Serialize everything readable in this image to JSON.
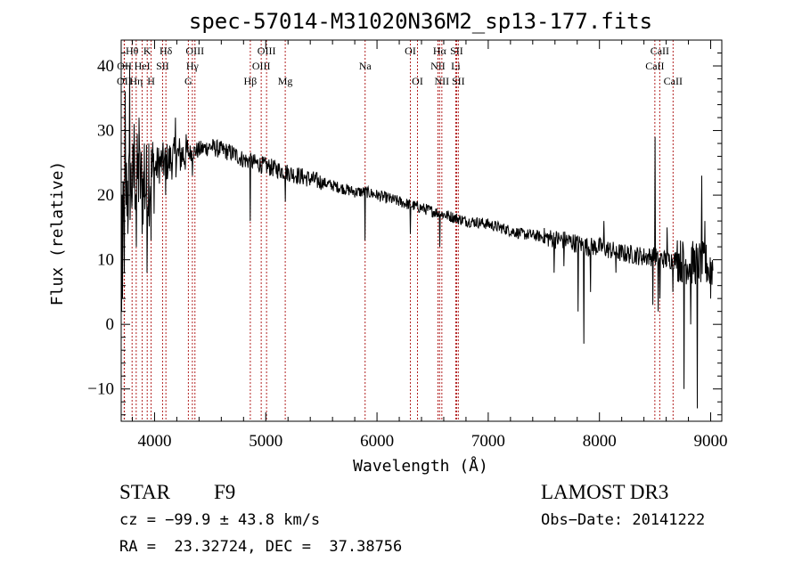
{
  "chart_data": {
    "type": "line",
    "title": "spec-57014-M31020N36M2_sp13-177.fits",
    "xlabel": "Wavelength (Å)",
    "ylabel": "Flux (relative)",
    "xlim": [
      3700,
      9100
    ],
    "ylim": [
      -15,
      44
    ],
    "xticks": [
      4000,
      5000,
      6000,
      7000,
      8000,
      9000
    ],
    "yticks": [
      -10,
      0,
      10,
      20,
      30,
      40
    ],
    "line_color": "#000000",
    "marker_color": "#b22222",
    "lines": [
      {
        "label": "OII",
        "wave": 3727,
        "row": 3
      },
      {
        "label": "OII",
        "wave": 3729,
        "row": 2
      },
      {
        "label": "Hθ",
        "wave": 3798,
        "row": 1
      },
      {
        "label": "Hη",
        "wave": 3835,
        "row": 3
      },
      {
        "label": "HeI",
        "wave": 3889,
        "row": 2
      },
      {
        "label": "K",
        "wave": 3934,
        "row": 1
      },
      {
        "label": "H",
        "wave": 3969,
        "row": 3
      },
      {
        "label": "SII",
        "wave": 4072,
        "row": 2
      },
      {
        "label": "Hδ",
        "wave": 4102,
        "row": 1
      },
      {
        "label": "G",
        "wave": 4304,
        "row": 3
      },
      {
        "label": "Hγ",
        "wave": 4340,
        "row": 2
      },
      {
        "label": "OIII",
        "wave": 4363,
        "row": 1
      },
      {
        "label": "Hβ",
        "wave": 4861,
        "row": 3
      },
      {
        "label": "OIII",
        "wave": 4959,
        "row": 2
      },
      {
        "label": "OIII",
        "wave": 5007,
        "row": 1
      },
      {
        "label": "Mg",
        "wave": 5175,
        "row": 3
      },
      {
        "label": "Na",
        "wave": 5893,
        "row": 2
      },
      {
        "label": "OI",
        "wave": 6300,
        "row": 1
      },
      {
        "label": "OI",
        "wave": 6364,
        "row": 3
      },
      {
        "label": "NII",
        "wave": 6548,
        "row": 2
      },
      {
        "label": "Hα",
        "wave": 6563,
        "row": 1
      },
      {
        "label": "NII",
        "wave": 6583,
        "row": 3
      },
      {
        "label": "Li",
        "wave": 6708,
        "row": 2
      },
      {
        "label": "SII",
        "wave": 6716,
        "row": 1
      },
      {
        "label": "SII",
        "wave": 6731,
        "row": 3
      },
      {
        "label": "CaII",
        "wave": 8498,
        "row": 2
      },
      {
        "label": "CaII",
        "wave": 8542,
        "row": 1
      },
      {
        "label": "CaII",
        "wave": 8662,
        "row": 3
      }
    ],
    "continuum": [
      [
        3700,
        19
      ],
      [
        3750,
        21
      ],
      [
        3800,
        22
      ],
      [
        3850,
        23
      ],
      [
        3900,
        21
      ],
      [
        3950,
        22
      ],
      [
        4000,
        24
      ],
      [
        4050,
        25
      ],
      [
        4100,
        25
      ],
      [
        4200,
        26
      ],
      [
        4300,
        26.5
      ],
      [
        4400,
        27
      ],
      [
        4500,
        27.5
      ],
      [
        4600,
        27
      ],
      [
        4700,
        26.5
      ],
      [
        4800,
        25.5
      ],
      [
        4900,
        25
      ],
      [
        5000,
        24.5
      ],
      [
        5100,
        24
      ],
      [
        5200,
        23.5
      ],
      [
        5300,
        23
      ],
      [
        5400,
        22.5
      ],
      [
        5500,
        22
      ],
      [
        5600,
        21.5
      ],
      [
        5700,
        21
      ],
      [
        5800,
        20.5
      ],
      [
        5900,
        20.5
      ],
      [
        6000,
        20
      ],
      [
        6100,
        19.5
      ],
      [
        6200,
        19
      ],
      [
        6300,
        18.5
      ],
      [
        6400,
        18
      ],
      [
        6500,
        17.5
      ],
      [
        6600,
        17
      ],
      [
        6700,
        16.5
      ],
      [
        6800,
        16
      ],
      [
        6900,
        15.8
      ],
      [
        7000,
        15.5
      ],
      [
        7100,
        15
      ],
      [
        7200,
        14.5
      ],
      [
        7300,
        14
      ],
      [
        7400,
        13.8
      ],
      [
        7500,
        13.5
      ],
      [
        7600,
        13.2
      ],
      [
        7700,
        13
      ],
      [
        7800,
        12.5
      ],
      [
        7900,
        12
      ],
      [
        8000,
        12
      ],
      [
        8100,
        11.5
      ],
      [
        8200,
        11
      ],
      [
        8300,
        10.8
      ],
      [
        8400,
        10.5
      ],
      [
        8500,
        10.5
      ],
      [
        8600,
        10
      ],
      [
        8700,
        10
      ],
      [
        8800,
        9.5
      ],
      [
        8900,
        9.5
      ],
      [
        9000,
        9
      ],
      [
        9100,
        9
      ]
    ],
    "features": [
      {
        "wave": 3703,
        "value": 2
      },
      {
        "wave": 3708,
        "value": 20
      },
      {
        "wave": 3713,
        "value": 4
      },
      {
        "wave": 3720,
        "value": 22
      },
      {
        "wave": 3728,
        "value": 8
      },
      {
        "wave": 3738,
        "value": 36
      },
      {
        "wave": 3760,
        "value": 14
      },
      {
        "wave": 3775,
        "value": 40
      },
      {
        "wave": 3798,
        "value": 18
      },
      {
        "wave": 3815,
        "value": 31
      },
      {
        "wave": 3835,
        "value": 12
      },
      {
        "wave": 3860,
        "value": 32
      },
      {
        "wave": 3889,
        "value": 14
      },
      {
        "wave": 3910,
        "value": 28
      },
      {
        "wave": 3934,
        "value": 8
      },
      {
        "wave": 3950,
        "value": 28
      },
      {
        "wave": 3969,
        "value": 13
      },
      {
        "wave": 4102,
        "value": 20
      },
      {
        "wave": 4190,
        "value": 32
      },
      {
        "wave": 4340,
        "value": 23
      },
      {
        "wave": 4861,
        "value": 16
      },
      {
        "wave": 5175,
        "value": 19
      },
      {
        "wave": 5893,
        "value": 13
      },
      {
        "wave": 6300,
        "value": 14
      },
      {
        "wave": 6563,
        "value": 12
      },
      {
        "wave": 7593,
        "value": 8
      },
      {
        "wave": 7680,
        "value": 9
      },
      {
        "wave": 7810,
        "value": 2
      },
      {
        "wave": 7860,
        "value": -3
      },
      {
        "wave": 7920,
        "value": 5
      },
      {
        "wave": 8040,
        "value": 16
      },
      {
        "wave": 8150,
        "value": 8
      },
      {
        "wave": 8480,
        "value": 3
      },
      {
        "wave": 8500,
        "value": 29
      },
      {
        "wave": 8530,
        "value": 2
      },
      {
        "wave": 8545,
        "value": 4
      },
      {
        "wave": 8610,
        "value": 15
      },
      {
        "wave": 8660,
        "value": 5
      },
      {
        "wave": 8700,
        "value": 13
      },
      {
        "wave": 8760,
        "value": -10
      },
      {
        "wave": 8820,
        "value": 0
      },
      {
        "wave": 8880,
        "value": -13
      },
      {
        "wave": 8920,
        "value": 23
      },
      {
        "wave": 8950,
        "value": 16
      },
      {
        "wave": 8990,
        "value": 7
      },
      {
        "wave": 9000,
        "value": 4
      }
    ]
  },
  "info": {
    "object_class": "STAR",
    "subclass": "F9",
    "redshift": "cz = −99.9 ± 43.8 km/s",
    "coords": "RA =  23.32724, DEC =  37.38756",
    "survey": "LAMOST DR3",
    "obs_date": "Obs−Date: 20141222"
  }
}
